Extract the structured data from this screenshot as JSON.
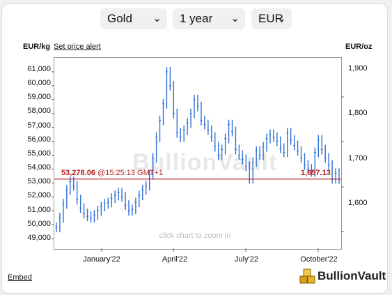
{
  "controls": {
    "metal": "Gold",
    "period": "1 year",
    "currency": "EUR"
  },
  "axis_labels": {
    "left_unit": "EUR/kg",
    "right_unit": "EUR/oz",
    "set_alert": "Set price alert"
  },
  "current_price": {
    "left_value": "53,278.06",
    "time": "@15:25:13 GMT+1",
    "right_value": "1,657.13"
  },
  "watermark": "BullionVault",
  "zoom_hint": "click chart to zoom in",
  "embed": "Embed",
  "brand": "BullionVault",
  "colors": {
    "series": "#2f6fd6",
    "price_line": "#b21d1d",
    "plot_border": "#999999"
  },
  "chart_data": {
    "type": "line",
    "title": "",
    "xlabel": "",
    "ylabel": "EUR/kg",
    "ylabel_right": "EUR/oz",
    "ylim": [
      48300,
      62000
    ],
    "yticks": [
      "49,000",
      "50,000",
      "51,000",
      "52,000",
      "53,000",
      "54,000",
      "55,000",
      "56,000",
      "57,000",
      "58,000",
      "59,000",
      "60,000",
      "61,000"
    ],
    "yticks_right": [
      "1,600",
      "1,700",
      "1,800",
      "1,900"
    ],
    "xticks": [
      "January'22",
      "April'22",
      "July'22",
      "October'22"
    ],
    "reference_line": 53278.06,
    "series": [
      {
        "values": [
          49800,
          50500,
          51500,
          52500,
          53100,
          52800,
          51800,
          51200,
          50800,
          50600,
          50500,
          50700,
          51000,
          51300,
          51500,
          51600,
          51900,
          52100,
          52300,
          52000,
          51400,
          51000,
          51100,
          51600,
          52100,
          52500,
          52800,
          53600,
          54800,
          56300,
          57500,
          58700,
          61000,
          60000,
          58000,
          56600,
          56300,
          56800,
          57300,
          58000,
          59000,
          58500,
          57500,
          57200,
          56800,
          56300,
          55600,
          55000,
          55400,
          56200,
          57200,
          56700,
          55400,
          55000,
          54700,
          54200,
          53300,
          54500,
          55300,
          55000,
          55600,
          56200,
          56500,
          56300,
          56000,
          55500,
          55200,
          56600,
          56100,
          55700,
          55300,
          54800,
          54300,
          54000,
          53800,
          55200,
          56100,
          55400,
          54800,
          54300,
          53300,
          53700,
          53278
        ]
      }
    ]
  }
}
